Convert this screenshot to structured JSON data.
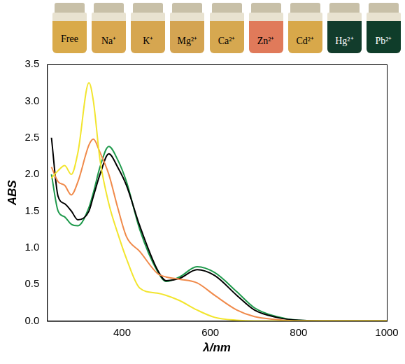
{
  "vials": [
    {
      "label": "Free",
      "color": "#d9aa4a"
    },
    {
      "label": "Na⁺",
      "color": "#d9a850"
    },
    {
      "label": "K⁺",
      "color": "#d6a650"
    },
    {
      "label": "Mg²⁺",
      "color": "#d4a452"
    },
    {
      "label": "Ca²⁺",
      "color": "#d6a850"
    },
    {
      "label": "Zn²⁺",
      "color": "#e07a5a"
    },
    {
      "label": "Cd²⁺",
      "color": "#d8a84a"
    },
    {
      "label": "Hg²⁺",
      "color": "#123c2c"
    },
    {
      "label": "Pb²⁺",
      "color": "#0f3d2a"
    }
  ],
  "chart_data": {
    "type": "line",
    "x_label": "λ/nm",
    "y_label": "ABS",
    "x": [
      240,
      255,
      270,
      285,
      300,
      325,
      335,
      350,
      370,
      390,
      410,
      440,
      480,
      500,
      530,
      570,
      610,
      660,
      700,
      750,
      800,
      900,
      1000
    ],
    "series": [
      {
        "color": "#f2e52e",
        "values": [
          1.95,
          2.05,
          2.12,
          2.0,
          2.3,
          3.25,
          3.0,
          2.2,
          1.6,
          1.2,
          0.85,
          0.45,
          0.38,
          0.35,
          0.28,
          0.15,
          0.05,
          0.01,
          0,
          0,
          0,
          0,
          0
        ]
      },
      {
        "color": "#f08a4a",
        "values": [
          2.1,
          1.9,
          1.85,
          1.72,
          1.9,
          2.4,
          2.48,
          2.3,
          2.0,
          1.55,
          1.15,
          0.95,
          0.65,
          0.6,
          0.57,
          0.52,
          0.35,
          0.15,
          0.06,
          0.02,
          0,
          0,
          0
        ]
      },
      {
        "color": "#000000",
        "values": [
          2.5,
          1.7,
          1.6,
          1.5,
          1.38,
          1.5,
          1.7,
          2.0,
          2.28,
          2.1,
          1.85,
          1.3,
          0.7,
          0.55,
          0.58,
          0.7,
          0.62,
          0.35,
          0.15,
          0.05,
          0.01,
          0,
          0
        ]
      },
      {
        "color": "#1f9a4c",
        "values": [
          2.0,
          1.5,
          1.42,
          1.32,
          1.3,
          1.55,
          1.75,
          2.1,
          2.38,
          2.2,
          1.9,
          1.25,
          0.68,
          0.54,
          0.6,
          0.74,
          0.66,
          0.4,
          0.18,
          0.06,
          0.01,
          0,
          0
        ]
      }
    ],
    "xlim": [
      230,
      1000
    ],
    "xticks": [
      400,
      600,
      800,
      1000
    ],
    "ylim": [
      0,
      3.5
    ],
    "yticks": [
      {
        "value": 0,
        "label": "0.0"
      },
      0.5,
      {
        "value": 1,
        "label": "1.0"
      },
      1.5,
      {
        "value": 2,
        "label": "2.0"
      },
      2.5,
      {
        "value": 3,
        "label": "3.0"
      },
      3.5
    ],
    "grid": false
  }
}
